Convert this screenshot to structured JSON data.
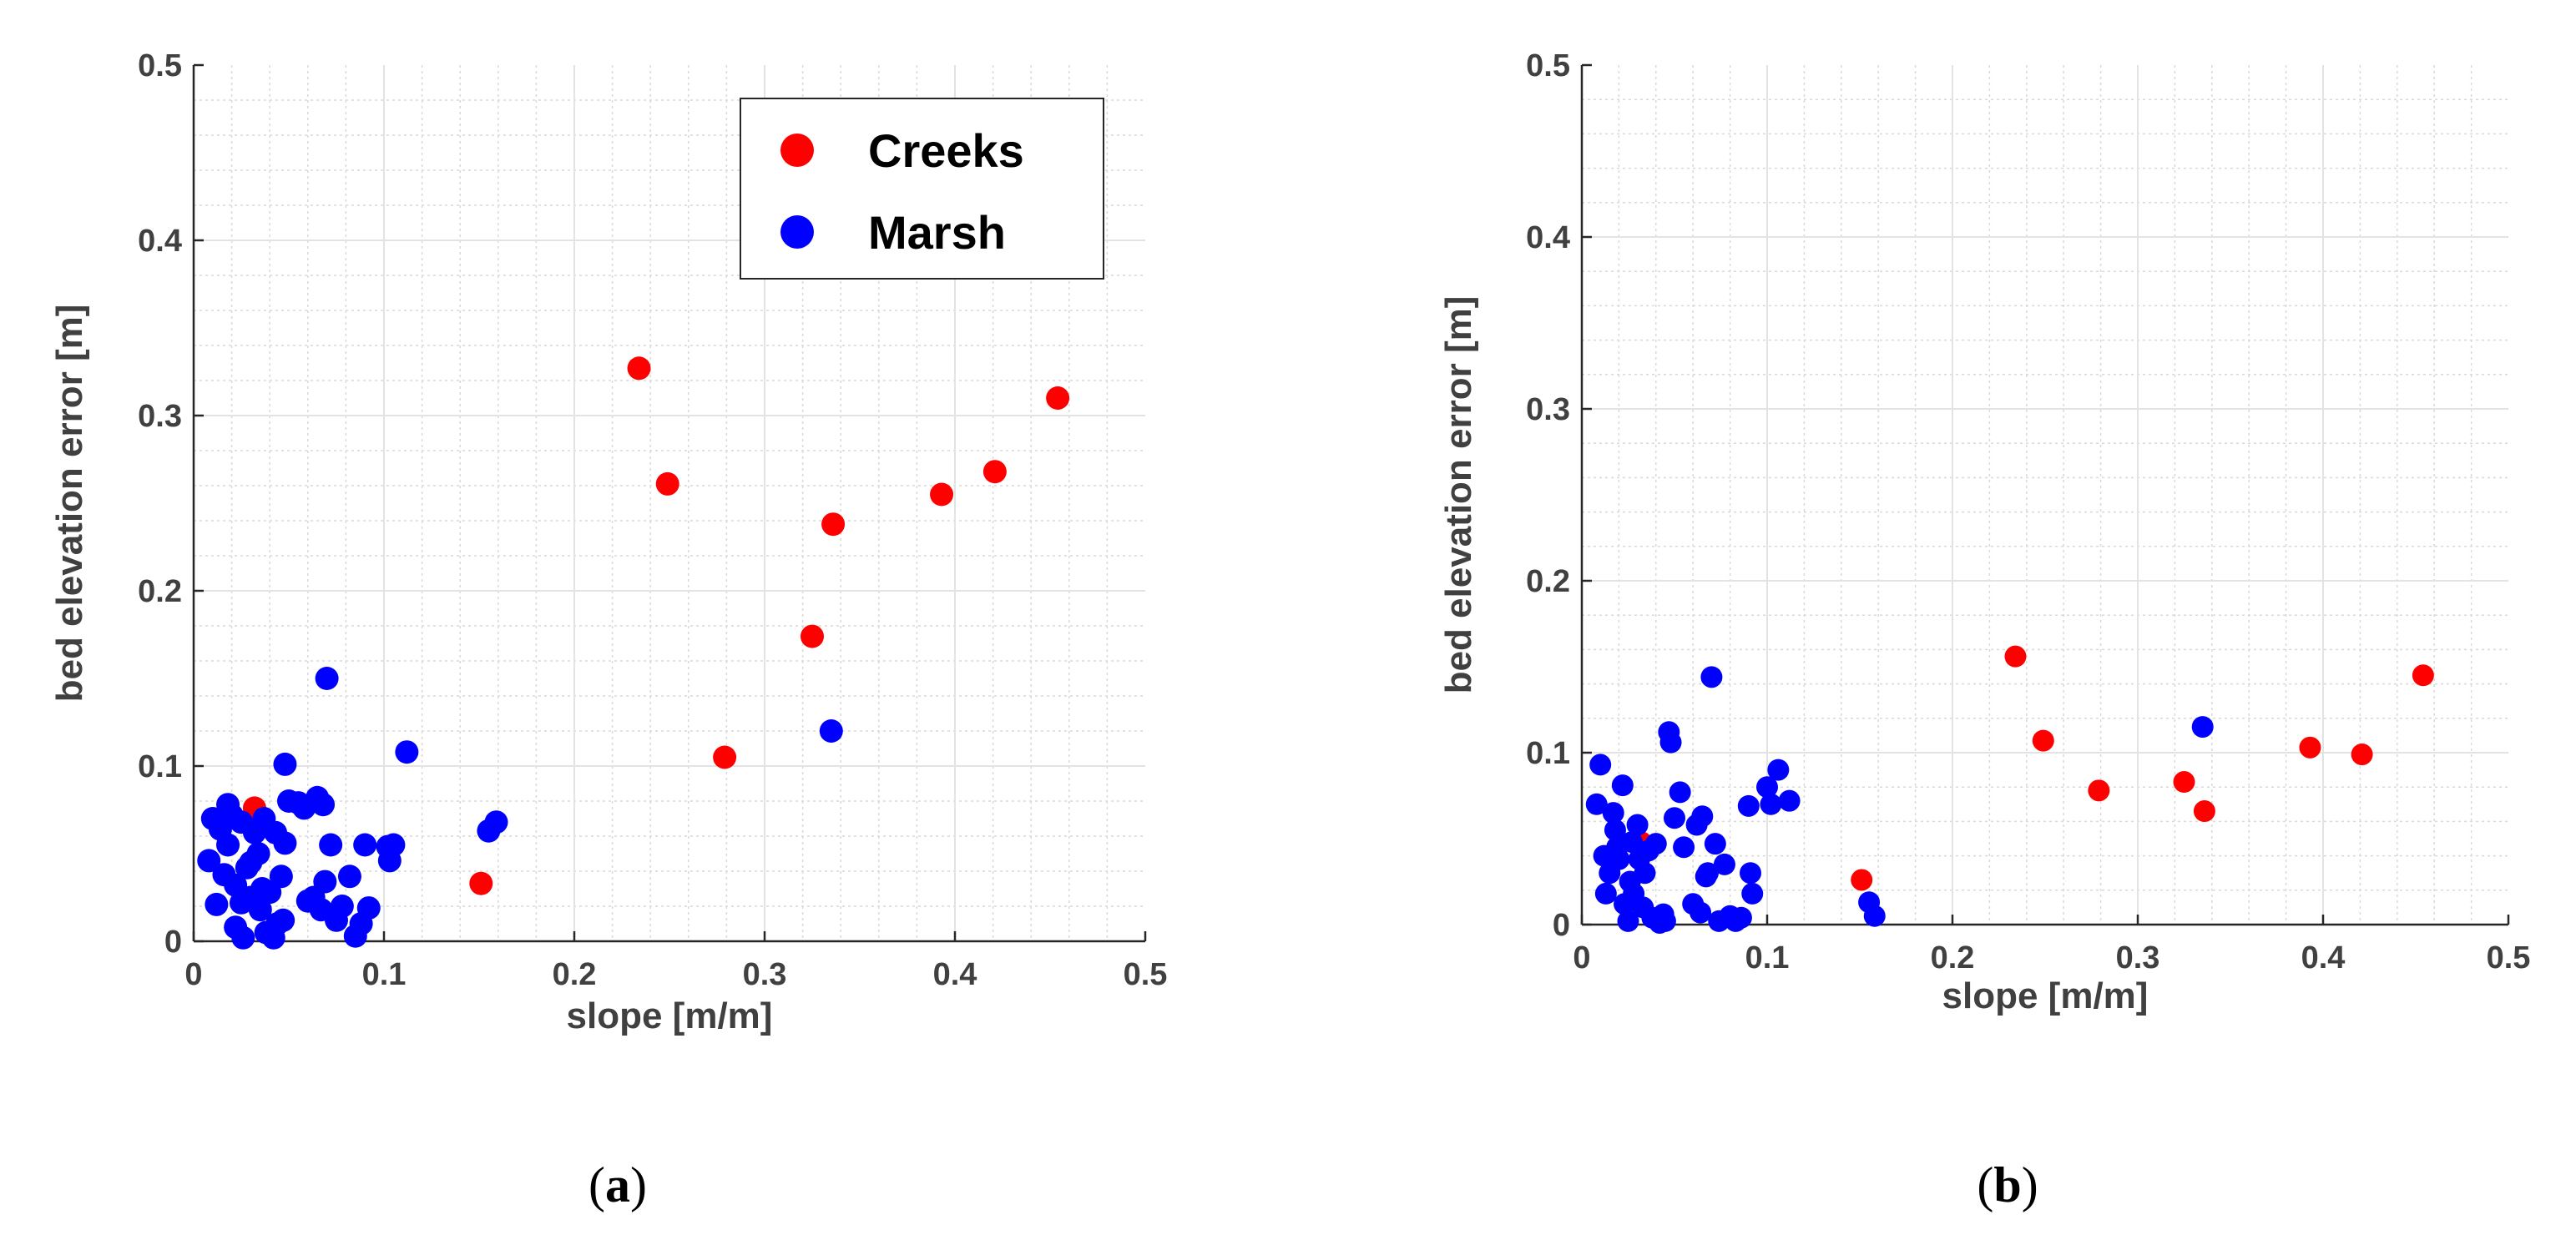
{
  "chart_data": [
    {
      "type": "scatter",
      "panel_label": "a",
      "caption_open": "(",
      "caption_close": ")",
      "xlabel": "slope [m/m]",
      "ylabel": "bed elevation error [m]",
      "xlim": [
        0,
        0.5
      ],
      "ylim": [
        0,
        0.5
      ],
      "xticks": [
        "0",
        "0.1",
        "0.2",
        "0.3",
        "0.4",
        "0.5"
      ],
      "yticks": [
        "0",
        "0.1",
        "0.2",
        "0.3",
        "0.4",
        "0.5"
      ],
      "grid": true,
      "legend": {
        "position": "top-right",
        "entries": [
          "Creeks",
          "Marsh"
        ]
      },
      "series": [
        {
          "name": "Creeks",
          "color": "#ff0000",
          "points": [
            [
              0.032,
              0.076
            ],
            [
              0.151,
              0.033
            ],
            [
              0.234,
              0.327
            ],
            [
              0.249,
              0.261
            ],
            [
              0.279,
              0.105
            ],
            [
              0.325,
              0.174
            ],
            [
              0.336,
              0.238
            ],
            [
              0.393,
              0.255
            ],
            [
              0.421,
              0.268
            ],
            [
              0.454,
              0.31
            ]
          ]
        },
        {
          "name": "Marsh",
          "color": "#0000ff",
          "points": [
            [
              0.008,
              0.046
            ],
            [
              0.01,
              0.07
            ],
            [
              0.012,
              0.021
            ],
            [
              0.014,
              0.064
            ],
            [
              0.016,
              0.038
            ],
            [
              0.018,
              0.078
            ],
            [
              0.018,
              0.055
            ],
            [
              0.02,
              0.072
            ],
            [
              0.022,
              0.032
            ],
            [
              0.022,
              0.008
            ],
            [
              0.025,
              0.022
            ],
            [
              0.025,
              0.068
            ],
            [
              0.026,
              0.002
            ],
            [
              0.028,
              0.042
            ],
            [
              0.03,
              0.025
            ],
            [
              0.03,
              0.045
            ],
            [
              0.032,
              0.062
            ],
            [
              0.034,
              0.05
            ],
            [
              0.035,
              0.018
            ],
            [
              0.036,
              0.03
            ],
            [
              0.037,
              0.07
            ],
            [
              0.038,
              0.005
            ],
            [
              0.04,
              0.028
            ],
            [
              0.042,
              0.002
            ],
            [
              0.043,
              0.062
            ],
            [
              0.044,
              0.01
            ],
            [
              0.046,
              0.037
            ],
            [
              0.047,
              0.012
            ],
            [
              0.048,
              0.056
            ],
            [
              0.048,
              0.101
            ],
            [
              0.05,
              0.08
            ],
            [
              0.055,
              0.079
            ],
            [
              0.058,
              0.076
            ],
            [
              0.06,
              0.023
            ],
            [
              0.063,
              0.025
            ],
            [
              0.065,
              0.082
            ],
            [
              0.067,
              0.018
            ],
            [
              0.068,
              0.078
            ],
            [
              0.069,
              0.034
            ],
            [
              0.07,
              0.15
            ],
            [
              0.072,
              0.055
            ],
            [
              0.075,
              0.012
            ],
            [
              0.078,
              0.02
            ],
            [
              0.082,
              0.037
            ],
            [
              0.085,
              0.003
            ],
            [
              0.088,
              0.01
            ],
            [
              0.09,
              0.055
            ],
            [
              0.092,
              0.019
            ],
            [
              0.102,
              0.054
            ],
            [
              0.103,
              0.046
            ],
            [
              0.105,
              0.055
            ],
            [
              0.112,
              0.108
            ],
            [
              0.155,
              0.063
            ],
            [
              0.159,
              0.068
            ],
            [
              0.335,
              0.12
            ]
          ]
        }
      ]
    },
    {
      "type": "scatter",
      "panel_label": "b",
      "caption_open": "(",
      "caption_close": ")",
      "xlabel": "slope [m/m]",
      "ylabel": "bed elevation error [m]",
      "xlim": [
        0,
        0.5
      ],
      "ylim": [
        0,
        0.5
      ],
      "xticks": [
        "0",
        "0.1",
        "0.2",
        "0.3",
        "0.4",
        "0.5"
      ],
      "yticks": [
        "0",
        "0.1",
        "0.2",
        "0.3",
        "0.4",
        "0.5"
      ],
      "grid": true,
      "series": [
        {
          "name": "Creeks",
          "color": "#ff0000",
          "points": [
            [
              0.032,
              0.048
            ],
            [
              0.151,
              0.026
            ],
            [
              0.234,
              0.156
            ],
            [
              0.249,
              0.107
            ],
            [
              0.279,
              0.078
            ],
            [
              0.325,
              0.083
            ],
            [
              0.336,
              0.066
            ],
            [
              0.393,
              0.103
            ],
            [
              0.421,
              0.099
            ],
            [
              0.454,
              0.145
            ]
          ]
        },
        {
          "name": "Marsh",
          "color": "#0000ff",
          "points": [
            [
              0.008,
              0.07
            ],
            [
              0.01,
              0.093
            ],
            [
              0.012,
              0.04
            ],
            [
              0.013,
              0.018
            ],
            [
              0.015,
              0.03
            ],
            [
              0.017,
              0.065
            ],
            [
              0.018,
              0.055
            ],
            [
              0.019,
              0.045
            ],
            [
              0.02,
              0.038
            ],
            [
              0.022,
              0.081
            ],
            [
              0.023,
              0.012
            ],
            [
              0.025,
              0.002
            ],
            [
              0.026,
              0.025
            ],
            [
              0.027,
              0.048
            ],
            [
              0.028,
              0.018
            ],
            [
              0.03,
              0.058
            ],
            [
              0.031,
              0.038
            ],
            [
              0.033,
              0.01
            ],
            [
              0.034,
              0.03
            ],
            [
              0.036,
              0.043
            ],
            [
              0.038,
              0.004
            ],
            [
              0.04,
              0.047
            ],
            [
              0.042,
              0.001
            ],
            [
              0.044,
              0.006
            ],
            [
              0.045,
              0.002
            ],
            [
              0.047,
              0.112
            ],
            [
              0.048,
              0.106
            ],
            [
              0.05,
              0.062
            ],
            [
              0.053,
              0.077
            ],
            [
              0.055,
              0.045
            ],
            [
              0.06,
              0.012
            ],
            [
              0.062,
              0.058
            ],
            [
              0.064,
              0.007
            ],
            [
              0.065,
              0.063
            ],
            [
              0.067,
              0.028
            ],
            [
              0.068,
              0.03
            ],
            [
              0.07,
              0.144
            ],
            [
              0.072,
              0.047
            ],
            [
              0.074,
              0.002
            ],
            [
              0.077,
              0.035
            ],
            [
              0.08,
              0.005
            ],
            [
              0.083,
              0.002
            ],
            [
              0.086,
              0.004
            ],
            [
              0.09,
              0.069
            ],
            [
              0.091,
              0.03
            ],
            [
              0.092,
              0.018
            ],
            [
              0.1,
              0.08
            ],
            [
              0.102,
              0.07
            ],
            [
              0.106,
              0.09
            ],
            [
              0.112,
              0.072
            ],
            [
              0.155,
              0.013
            ],
            [
              0.158,
              0.005
            ],
            [
              0.335,
              0.115
            ]
          ]
        }
      ]
    }
  ]
}
